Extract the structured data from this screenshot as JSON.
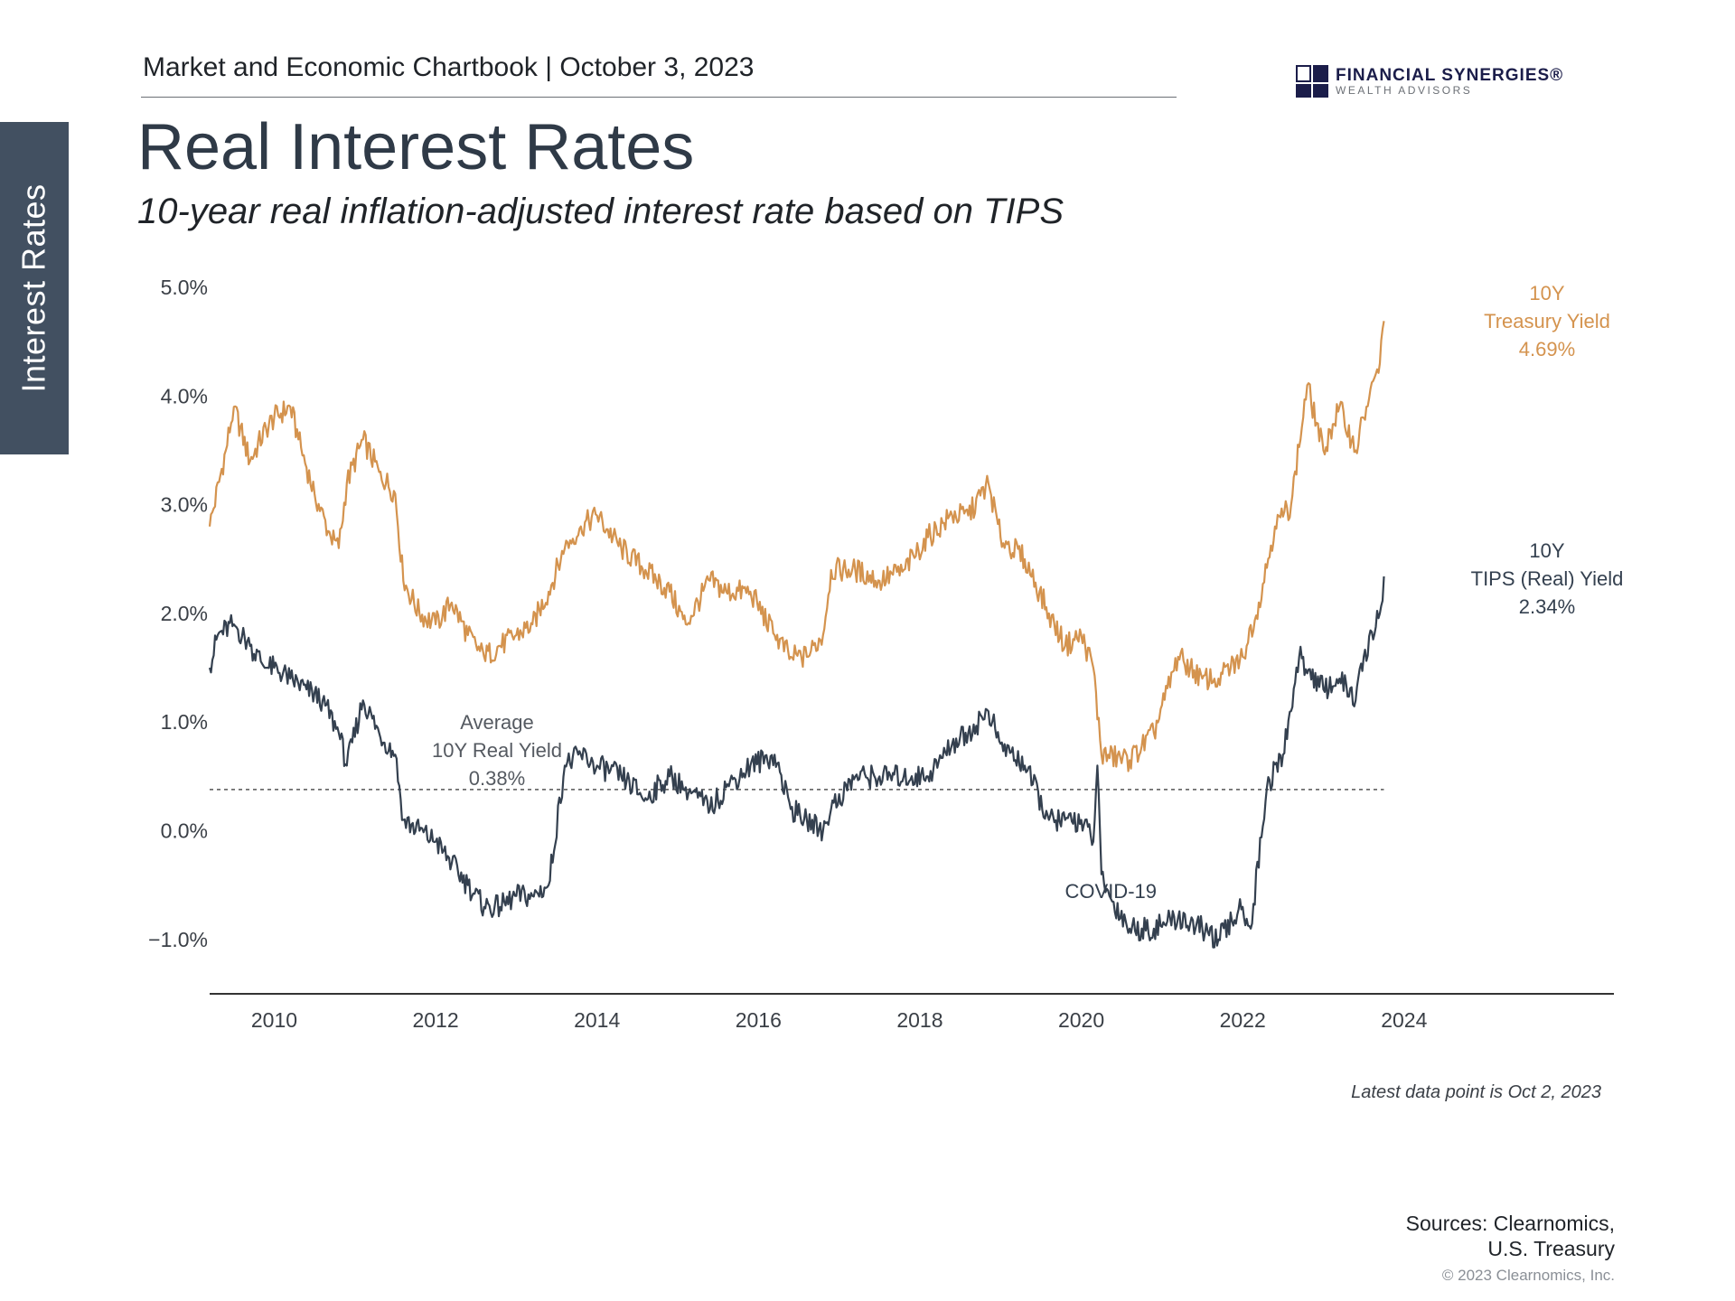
{
  "side_tab": "Interest Rates",
  "header": {
    "chartbook": "Market and Economic Chartbook | October 3, 2023"
  },
  "logo": {
    "name": "FINANCIAL SYNERGIES®",
    "sub": "WEALTH ADVISORS"
  },
  "title": "Real Interest Rates",
  "subtitle": "10-year real inflation-adjusted interest rate based on TIPS",
  "colors": {
    "treasury": "#d4934e",
    "tips": "#34404f",
    "axis": "#333333",
    "average_line": "#555555"
  },
  "chart_data": {
    "type": "line",
    "title": "Real Interest Rates",
    "xlabel": "",
    "ylabel": "",
    "xlim": [
      2009.2,
      2026.6
    ],
    "ylim": [
      -1.5,
      5.0
    ],
    "y_ticks": [
      {
        "value": 5.0,
        "label": "5.0%"
      },
      {
        "value": 4.0,
        "label": "4.0%"
      },
      {
        "value": 3.0,
        "label": "3.0%"
      },
      {
        "value": 2.0,
        "label": "2.0%"
      },
      {
        "value": 1.0,
        "label": "1.0%"
      },
      {
        "value": 0.0,
        "label": "0.0%"
      },
      {
        "value": -1.0,
        "label": "−1.0%"
      }
    ],
    "x_ticks": [
      {
        "value": 2010,
        "label": "2010"
      },
      {
        "value": 2012,
        "label": "2012"
      },
      {
        "value": 2014,
        "label": "2014"
      },
      {
        "value": 2016,
        "label": "2016"
      },
      {
        "value": 2018,
        "label": "2018"
      },
      {
        "value": 2020,
        "label": "2020"
      },
      {
        "value": 2022,
        "label": "2022"
      },
      {
        "value": 2024,
        "label": "2024"
      }
    ],
    "series": [
      {
        "name": "10Y Treasury Yield",
        "x": [
          2009.2,
          2009.4,
          2009.5,
          2009.7,
          2009.9,
          2010.0,
          2010.2,
          2010.3,
          2010.5,
          2010.7,
          2010.8,
          2010.9,
          2011.1,
          2011.3,
          2011.5,
          2011.6,
          2011.8,
          2012.0,
          2012.2,
          2012.4,
          2012.6,
          2012.8,
          2013.0,
          2013.2,
          2013.4,
          2013.6,
          2013.8,
          2014.0,
          2014.3,
          2014.6,
          2014.9,
          2015.1,
          2015.4,
          2015.6,
          2015.9,
          2016.2,
          2016.4,
          2016.6,
          2016.8,
          2016.9,
          2017.2,
          2017.5,
          2017.8,
          2018.1,
          2018.4,
          2018.6,
          2018.85,
          2019.0,
          2019.3,
          2019.6,
          2019.8,
          2020.0,
          2020.15,
          2020.25,
          2020.6,
          2020.9,
          2021.2,
          2021.5,
          2021.7,
          2022.0,
          2022.2,
          2022.4,
          2022.6,
          2022.8,
          2023.0,
          2023.2,
          2023.4,
          2023.5,
          2023.7,
          2023.75
        ],
        "values": [
          2.8,
          3.5,
          3.9,
          3.4,
          3.7,
          3.8,
          3.9,
          3.6,
          3.1,
          2.7,
          2.6,
          3.2,
          3.6,
          3.3,
          3.1,
          2.3,
          2.0,
          1.9,
          2.1,
          1.8,
          1.6,
          1.7,
          1.8,
          1.9,
          2.2,
          2.6,
          2.8,
          2.9,
          2.6,
          2.4,
          2.2,
          1.9,
          2.3,
          2.2,
          2.2,
          1.8,
          1.6,
          1.6,
          1.8,
          2.4,
          2.4,
          2.3,
          2.4,
          2.7,
          2.9,
          2.9,
          3.2,
          2.7,
          2.5,
          2.0,
          1.7,
          1.8,
          1.5,
          0.7,
          0.65,
          0.9,
          1.6,
          1.4,
          1.4,
          1.6,
          2.1,
          2.8,
          3.0,
          4.1,
          3.5,
          3.9,
          3.5,
          3.8,
          4.3,
          4.69
        ]
      },
      {
        "name": "10Y TIPS (Real) Yield",
        "x": [
          2009.2,
          2009.3,
          2009.5,
          2009.7,
          2009.9,
          2010.0,
          2010.2,
          2010.4,
          2010.6,
          2010.8,
          2010.9,
          2011.1,
          2011.3,
          2011.5,
          2011.6,
          2011.8,
          2012.0,
          2012.2,
          2012.4,
          2012.6,
          2012.8,
          2013.0,
          2013.2,
          2013.4,
          2013.6,
          2013.8,
          2014.0,
          2014.3,
          2014.6,
          2014.9,
          2015.1,
          2015.4,
          2015.6,
          2015.9,
          2016.2,
          2016.4,
          2016.6,
          2016.8,
          2016.9,
          2017.2,
          2017.5,
          2017.8,
          2018.1,
          2018.4,
          2018.6,
          2018.85,
          2019.0,
          2019.3,
          2019.6,
          2019.8,
          2020.0,
          2020.15,
          2020.2,
          2020.25,
          2020.35,
          2020.6,
          2020.9,
          2021.2,
          2021.5,
          2021.7,
          2022.0,
          2022.1,
          2022.3,
          2022.5,
          2022.7,
          2023.0,
          2023.2,
          2023.4,
          2023.5,
          2023.7,
          2023.75
        ],
        "values": [
          1.5,
          1.8,
          1.9,
          1.7,
          1.5,
          1.5,
          1.4,
          1.3,
          1.2,
          0.9,
          0.6,
          1.2,
          0.9,
          0.7,
          0.1,
          0.0,
          -0.1,
          -0.3,
          -0.5,
          -0.7,
          -0.7,
          -0.6,
          -0.6,
          -0.5,
          0.6,
          0.7,
          0.6,
          0.5,
          0.3,
          0.5,
          0.4,
          0.2,
          0.4,
          0.6,
          0.7,
          0.2,
          0.1,
          0.0,
          0.2,
          0.5,
          0.5,
          0.5,
          0.5,
          0.8,
          0.9,
          1.1,
          0.8,
          0.6,
          0.1,
          0.1,
          0.1,
          -0.1,
          0.6,
          -0.4,
          -0.6,
          -0.9,
          -0.9,
          -0.8,
          -0.9,
          -1.0,
          -0.7,
          -0.9,
          0.4,
          0.7,
          1.6,
          1.3,
          1.4,
          1.2,
          1.6,
          2.0,
          2.34
        ]
      }
    ],
    "average": {
      "value": 0.38,
      "label_lines": [
        "Average",
        "10Y Real Yield",
        "0.38%"
      ]
    },
    "annotations": {
      "covid": "COVID-19",
      "treasury_label": [
        "10Y",
        "Treasury Yield",
        "4.69%"
      ],
      "tips_label": [
        "10Y",
        "TIPS (Real) Yield",
        "2.34%"
      ]
    }
  },
  "footnote": "Latest data point is Oct 2, 2023",
  "sources": {
    "line1": "Sources: Clearnomics,",
    "line2": "U.S. Treasury"
  },
  "copyright": "© 2023 Clearnomics, Inc."
}
